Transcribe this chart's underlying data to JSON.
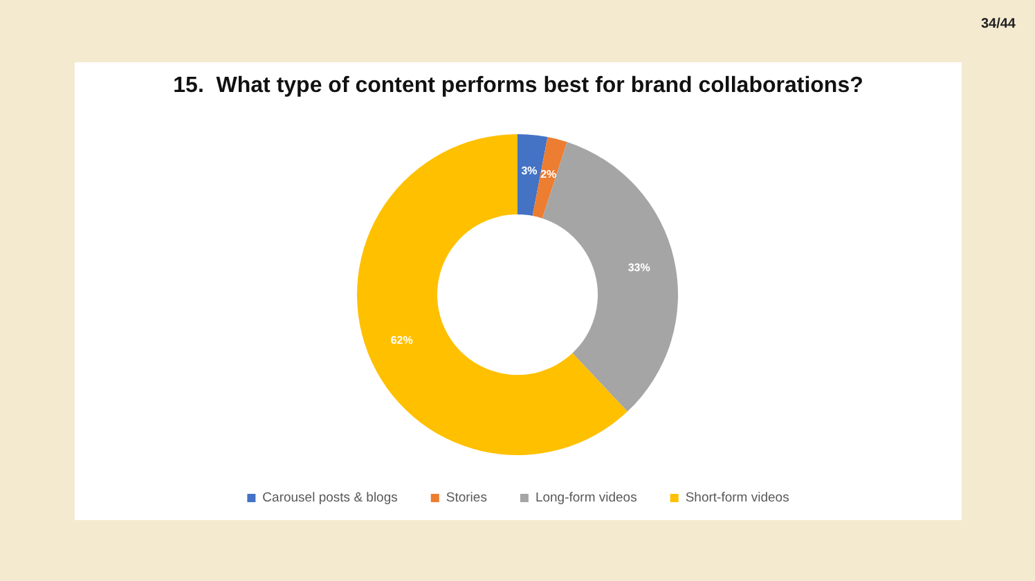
{
  "chart_data": {
    "type": "donut",
    "title": "15.  What type of content performs best for brand collaborations?",
    "categories": [
      "Carousel posts & blogs",
      "Stories",
      "Long-form videos",
      "Short-form videos"
    ],
    "values": [
      3,
      2,
      33,
      62
    ],
    "colors": [
      "#4472c4",
      "#ed7d31",
      "#a5a5a5",
      "#ffc000"
    ],
    "value_labels": [
      "3%",
      "2%",
      "33%",
      "62%"
    ],
    "legend": "bottom",
    "annotations": [
      "34/44"
    ]
  }
}
